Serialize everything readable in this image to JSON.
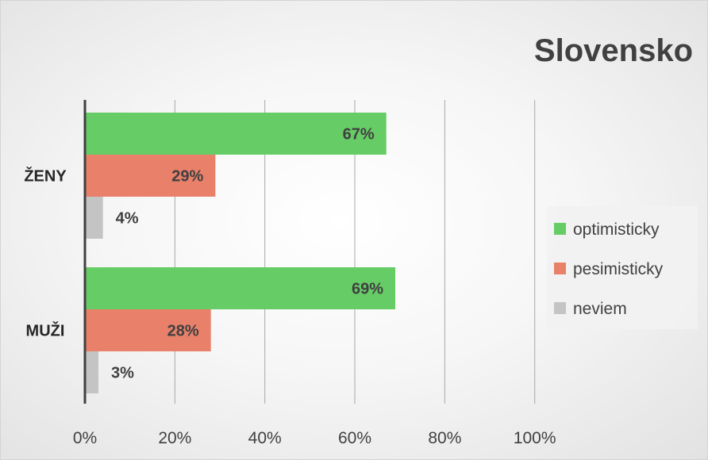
{
  "chart_data": {
    "type": "bar",
    "orientation": "horizontal",
    "title": "Slovensko",
    "categories": [
      "ŽENY",
      "MUŽI"
    ],
    "series": [
      {
        "name": "optimisticky",
        "color": "#66CC66",
        "values": [
          67,
          69
        ],
        "labels": [
          "67%",
          "69%"
        ]
      },
      {
        "name": "pesimisticky",
        "color": "#E8806A",
        "values": [
          29,
          28
        ],
        "labels": [
          "29%",
          "28%"
        ]
      },
      {
        "name": "neviem",
        "color": "#C4C4C4",
        "values": [
          4,
          3
        ],
        "labels": [
          "4%",
          "3%"
        ]
      }
    ],
    "xlim": [
      0,
      100
    ],
    "xticks": [
      "0%",
      "20%",
      "40%",
      "60%",
      "80%",
      "100%"
    ],
    "grid": true,
    "legend_position": "right"
  }
}
